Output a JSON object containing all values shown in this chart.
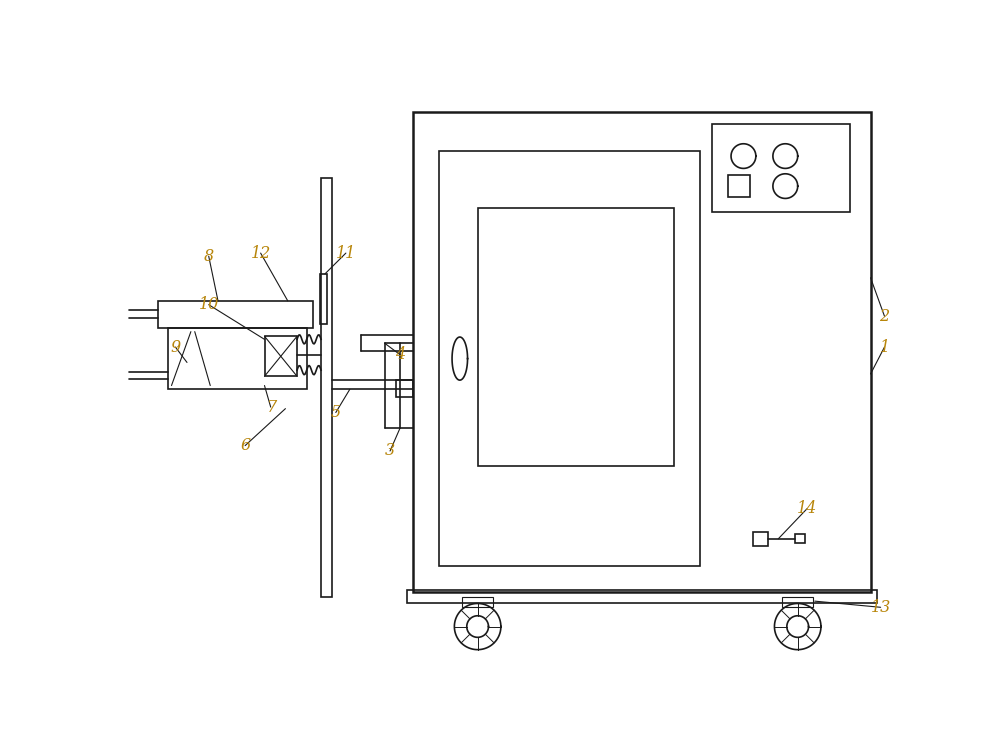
{
  "bg_color": "#ffffff",
  "line_color": "#1a1a1a",
  "label_color": "#b8860b",
  "figsize": [
    10.0,
    7.36
  ],
  "dpi": 100
}
